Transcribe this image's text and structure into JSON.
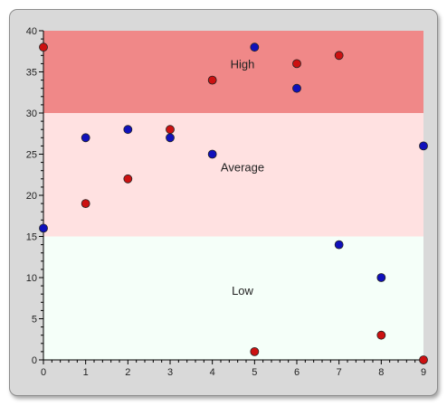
{
  "chart_data": {
    "type": "scatter",
    "title": "",
    "xlabel": "",
    "ylabel": "",
    "xlim": [
      0,
      9
    ],
    "ylim": [
      0,
      40
    ],
    "x_ticks": [
      0,
      1,
      2,
      3,
      4,
      5,
      6,
      7,
      8,
      9
    ],
    "y_ticks": [
      0,
      5,
      10,
      15,
      20,
      25,
      30,
      35,
      40
    ],
    "grid": false,
    "bands": [
      {
        "label": "High",
        "from": 30,
        "to": 40,
        "color": "#f08888"
      },
      {
        "label": "Average",
        "from": 15,
        "to": 30,
        "color": "#ffe1e1"
      },
      {
        "label": "Low",
        "from": 0,
        "to": 15,
        "color": "#f5fff9"
      }
    ],
    "series": [
      {
        "color": "#cc1111",
        "points": [
          {
            "x": 0,
            "y": 38
          },
          {
            "x": 1,
            "y": 19
          },
          {
            "x": 2,
            "y": 22
          },
          {
            "x": 3,
            "y": 28
          },
          {
            "x": 4,
            "y": 34
          },
          {
            "x": 5,
            "y": 1
          },
          {
            "x": 6,
            "y": 36
          },
          {
            "x": 7,
            "y": 37
          },
          {
            "x": 8,
            "y": 3
          },
          {
            "x": 9,
            "y": 0
          }
        ]
      },
      {
        "color": "#1010bb",
        "points": [
          {
            "x": 0,
            "y": 16
          },
          {
            "x": 1,
            "y": 27
          },
          {
            "x": 2,
            "y": 28
          },
          {
            "x": 3,
            "y": 27
          },
          {
            "x": 4,
            "y": 25
          },
          {
            "x": 5,
            "y": 38
          },
          {
            "x": 6,
            "y": 33
          },
          {
            "x": 7,
            "y": 14
          },
          {
            "x": 8,
            "y": 10
          },
          {
            "x": 9,
            "y": 26
          }
        ]
      }
    ]
  }
}
